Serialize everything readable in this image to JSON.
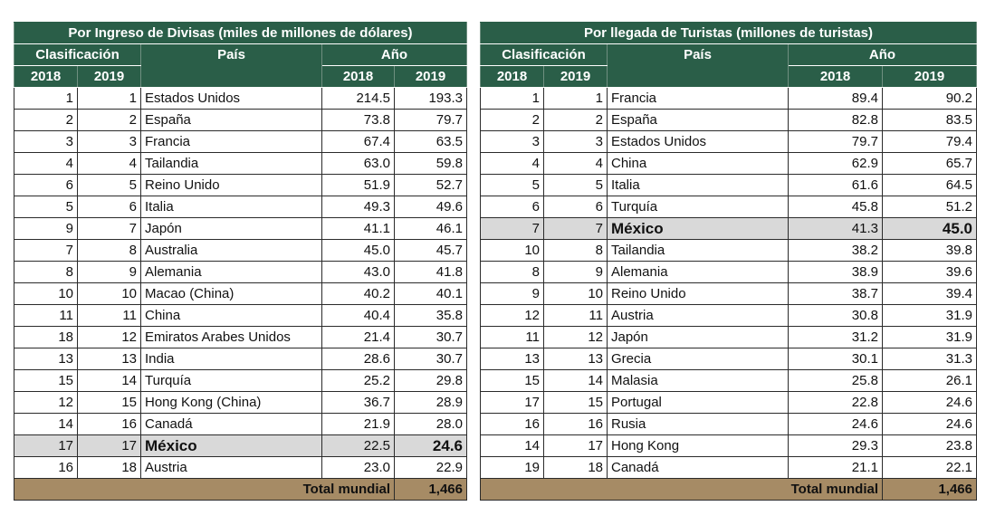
{
  "tables": [
    {
      "title": "Por Ingreso de Divisas (miles de millones de dólares)",
      "h_rank": "Clasificación",
      "h_country": "País",
      "h_year": "Año",
      "y1": "2018",
      "y2": "2019",
      "rows": [
        [
          "1",
          "1",
          "Estados Unidos",
          "214.5",
          "193.3"
        ],
        [
          "2",
          "2",
          "España",
          "73.8",
          "79.7"
        ],
        [
          "3",
          "3",
          "Francia",
          "67.4",
          "63.5"
        ],
        [
          "4",
          "4",
          "Tailandia",
          "63.0",
          "59.8"
        ],
        [
          "6",
          "5",
          "Reino Unido",
          "51.9",
          "52.7"
        ],
        [
          "5",
          "6",
          "Italia",
          "49.3",
          "49.6"
        ],
        [
          "9",
          "7",
          "Japón",
          "41.1",
          "46.1"
        ],
        [
          "7",
          "8",
          "Australia",
          "45.0",
          "45.7"
        ],
        [
          "8",
          "9",
          "Alemania",
          "43.0",
          "41.8"
        ],
        [
          "10",
          "10",
          "Macao (China)",
          "40.2",
          "40.1"
        ],
        [
          "11",
          "11",
          "China",
          "40.4",
          "35.8"
        ],
        [
          "18",
          "12",
          "Emiratos Arabes Unidos",
          "21.4",
          "30.7"
        ],
        [
          "13",
          "13",
          "India",
          "28.6",
          "30.7"
        ],
        [
          "15",
          "14",
          "Turquía",
          "25.2",
          "29.8"
        ],
        [
          "12",
          "15",
          "Hong Kong (China)",
          "36.7",
          "28.9"
        ],
        [
          "14",
          "16",
          "Canadá",
          "21.9",
          "28.0"
        ],
        [
          "17",
          "17",
          "México",
          "22.5",
          "24.6"
        ],
        [
          "16",
          "18",
          "Austria",
          "23.0",
          "22.9"
        ]
      ],
      "highlight_row": 16,
      "total_label": "Total mundial",
      "total_value": "1,466"
    },
    {
      "title": "Por llegada de Turistas (millones de turistas)",
      "h_rank": "Clasificación",
      "h_country": "País",
      "h_year": "Año",
      "y1": "2018",
      "y2": "2019",
      "rows": [
        [
          "1",
          "1",
          "Francia",
          "89.4",
          "90.2"
        ],
        [
          "2",
          "2",
          "España",
          "82.8",
          "83.5"
        ],
        [
          "3",
          "3",
          "Estados Unidos",
          "79.7",
          "79.4"
        ],
        [
          "4",
          "4",
          "China",
          "62.9",
          "65.7"
        ],
        [
          "5",
          "5",
          "Italia",
          "61.6",
          "64.5"
        ],
        [
          "6",
          "6",
          "Turquía",
          "45.8",
          "51.2"
        ],
        [
          "7",
          "7",
          "México",
          "41.3",
          "45.0"
        ],
        [
          "10",
          "8",
          "Tailandia",
          "38.2",
          "39.8"
        ],
        [
          "8",
          "9",
          "Alemania",
          "38.9",
          "39.6"
        ],
        [
          "9",
          "10",
          "Reino Unido",
          "38.7",
          "39.4"
        ],
        [
          "12",
          "11",
          "Austria",
          "30.8",
          "31.9"
        ],
        [
          "11",
          "12",
          "Japón",
          "31.2",
          "31.9"
        ],
        [
          "13",
          "13",
          "Grecia",
          "30.1",
          "31.3"
        ],
        [
          "15",
          "14",
          "Malasia",
          "25.8",
          "26.1"
        ],
        [
          "17",
          "15",
          "Portugal",
          "22.8",
          "24.6"
        ],
        [
          "16",
          "16",
          "Rusia",
          "24.6",
          "24.6"
        ],
        [
          "14",
          "17",
          "Hong Kong",
          "29.3",
          "23.8"
        ],
        [
          "19",
          "18",
          "Canadá",
          "21.1",
          "22.1"
        ]
      ],
      "highlight_row": 6,
      "total_label": "Total mundial",
      "total_value": "1,466"
    }
  ],
  "colors": {
    "header_bg": "#2a5e48",
    "header_text": "#ffffff",
    "highlight_bg": "#d9d9d9",
    "total_bg": "#a68b65"
  }
}
